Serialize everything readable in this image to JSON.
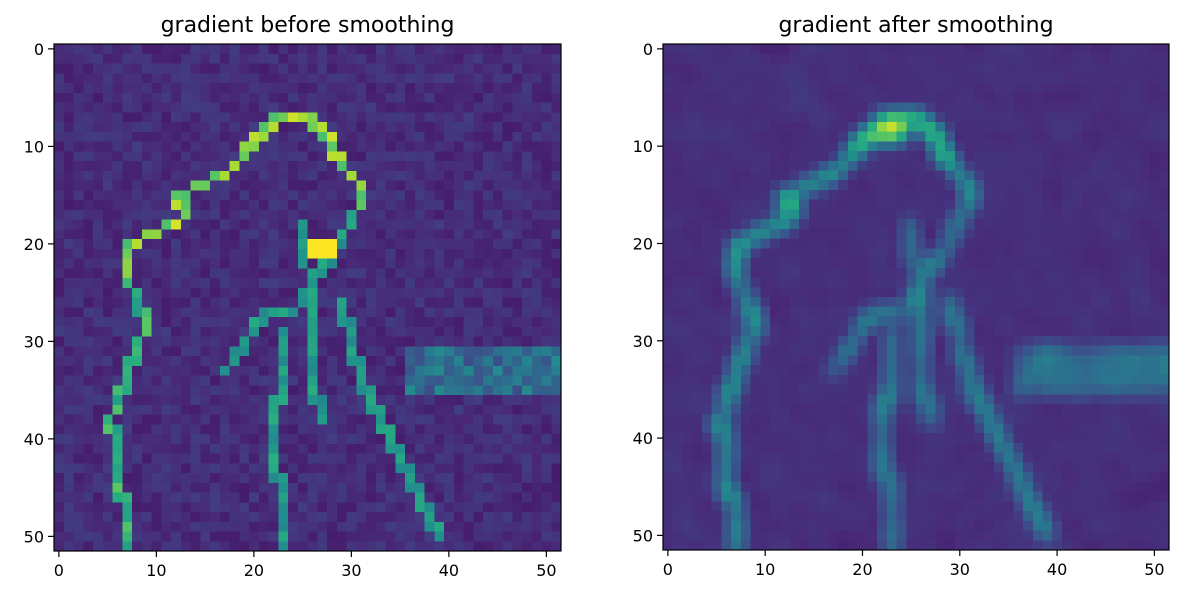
{
  "figure": {
    "colormap": "viridis",
    "colors": {
      "low": "#440154",
      "mid": "#21918c",
      "high": "#fde725"
    }
  },
  "chart_data": [
    {
      "type": "heatmap",
      "title": "gradient before smoothing",
      "xlabel": "",
      "ylabel": "",
      "grid": false,
      "xlim": [
        -0.5,
        51.5
      ],
      "ylim": [
        51.5,
        -0.5
      ],
      "xticks": [
        0,
        10,
        20,
        30,
        40,
        50
      ],
      "yticks": [
        0,
        10,
        20,
        30,
        40,
        50
      ],
      "image_shape": [
        52,
        52
      ],
      "value_range": [
        0,
        1
      ],
      "structures": {
        "background_level": 0.08,
        "hair_outline": {
          "level": 0.82,
          "path": [
            [
              7,
              23
            ],
            [
              7,
              20
            ],
            [
              9,
              19
            ],
            [
              13,
              17
            ],
            [
              12,
              15
            ],
            [
              16,
              13
            ],
            [
              18,
              12
            ],
            [
              20,
              9
            ],
            [
              22,
              7
            ],
            [
              25,
              7
            ],
            [
              27,
              8
            ],
            [
              28,
              10
            ],
            [
              29,
              12
            ],
            [
              30,
              13
            ],
            [
              31,
              14
            ],
            [
              31,
              16
            ]
          ]
        },
        "face_outline": {
          "level": 0.55,
          "path": [
            [
              17,
              33
            ],
            [
              19,
              30
            ],
            [
              21,
              27
            ],
            [
              24,
              27
            ],
            [
              26,
              24
            ],
            [
              27,
              22
            ],
            [
              28,
              21
            ],
            [
              29,
              19
            ],
            [
              30,
              17
            ],
            [
              31,
              15
            ]
          ]
        },
        "left_edge": {
          "level": 0.65,
          "path": [
            [
              7,
              23
            ],
            [
              8,
              26
            ],
            [
              9,
              28
            ],
            [
              8,
              30
            ],
            [
              7,
              33
            ],
            [
              6,
              36
            ],
            [
              5,
              38
            ],
            [
              6,
              40
            ],
            [
              6,
              44
            ],
            [
              7,
              48
            ],
            [
              7,
              51
            ]
          ]
        },
        "inner_edges": {
          "level": 0.55,
          "paths": [
            [
              [
                23,
                29
              ],
              [
                23,
                33
              ],
              [
                22,
                38
              ],
              [
                22,
                42
              ],
              [
                23,
                46
              ],
              [
                23,
                51
              ]
            ],
            [
              [
                26,
                26
              ],
              [
                26,
                30
              ],
              [
                26,
                34
              ],
              [
                27,
                38
              ]
            ],
            [
              [
                29,
                26
              ],
              [
                30,
                30
              ],
              [
                31,
                34
              ],
              [
                33,
                38
              ],
              [
                35,
                42
              ],
              [
                37,
                46
              ],
              [
                39,
                50
              ]
            ],
            [
              [
                25,
                18
              ],
              [
                25,
                21
              ],
              [
                26,
                24
              ]
            ]
          ]
        },
        "horizon_band": {
          "level": 0.42,
          "rows": [
            31,
            35
          ],
          "from_col": 36
        },
        "bright_spot": {
          "level": 1.0,
          "center": [
            27,
            20
          ],
          "size": [
            3,
            2
          ]
        }
      }
    },
    {
      "type": "heatmap",
      "title": "gradient after smoothing",
      "xlabel": "",
      "ylabel": "",
      "grid": false,
      "xlim": [
        -0.5,
        51.5
      ],
      "ylim": [
        51.5,
        -0.5
      ],
      "xticks": [
        0,
        10,
        20,
        30,
        40,
        50
      ],
      "yticks": [
        0,
        10,
        20,
        30,
        40,
        50
      ],
      "image_shape": [
        52,
        52
      ],
      "value_range": [
        0,
        1
      ],
      "structures": {
        "background_level": 0.08,
        "hair_outline": {
          "level": 0.82,
          "path": [
            [
              7,
              23
            ],
            [
              7,
              20
            ],
            [
              9,
              19
            ],
            [
              13,
              17
            ],
            [
              12,
              15
            ],
            [
              16,
              13
            ],
            [
              18,
              12
            ],
            [
              20,
              9
            ],
            [
              22,
              7
            ],
            [
              25,
              7
            ],
            [
              27,
              8
            ],
            [
              28,
              10
            ],
            [
              29,
              12
            ],
            [
              30,
              13
            ],
            [
              31,
              14
            ],
            [
              31,
              16
            ]
          ]
        },
        "face_outline": {
          "level": 0.55,
          "path": [
            [
              17,
              33
            ],
            [
              19,
              30
            ],
            [
              21,
              27
            ],
            [
              24,
              27
            ],
            [
              26,
              24
            ],
            [
              27,
              22
            ],
            [
              28,
              21
            ],
            [
              29,
              19
            ],
            [
              30,
              17
            ],
            [
              31,
              15
            ]
          ]
        },
        "left_edge": {
          "level": 0.65,
          "path": [
            [
              7,
              23
            ],
            [
              8,
              26
            ],
            [
              9,
              28
            ],
            [
              8,
              30
            ],
            [
              7,
              33
            ],
            [
              6,
              36
            ],
            [
              5,
              38
            ],
            [
              6,
              40
            ],
            [
              6,
              44
            ],
            [
              7,
              48
            ],
            [
              7,
              51
            ]
          ]
        },
        "inner_edges": {
          "level": 0.55,
          "paths": [
            [
              [
                23,
                29
              ],
              [
                23,
                33
              ],
              [
                22,
                38
              ],
              [
                22,
                42
              ],
              [
                23,
                46
              ],
              [
                23,
                51
              ]
            ],
            [
              [
                26,
                26
              ],
              [
                26,
                30
              ],
              [
                26,
                34
              ],
              [
                27,
                38
              ]
            ],
            [
              [
                29,
                26
              ],
              [
                30,
                30
              ],
              [
                31,
                34
              ],
              [
                33,
                38
              ],
              [
                35,
                42
              ],
              [
                37,
                46
              ],
              [
                39,
                50
              ]
            ],
            [
              [
                25,
                18
              ],
              [
                25,
                21
              ],
              [
                26,
                24
              ]
            ]
          ]
        },
        "horizon_band": {
          "level": 0.42,
          "rows": [
            31,
            35
          ],
          "from_col": 36
        },
        "bright_spot": {
          "level": 0.9,
          "center": [
            23,
            8
          ],
          "size": [
            3,
            2
          ]
        }
      }
    }
  ]
}
